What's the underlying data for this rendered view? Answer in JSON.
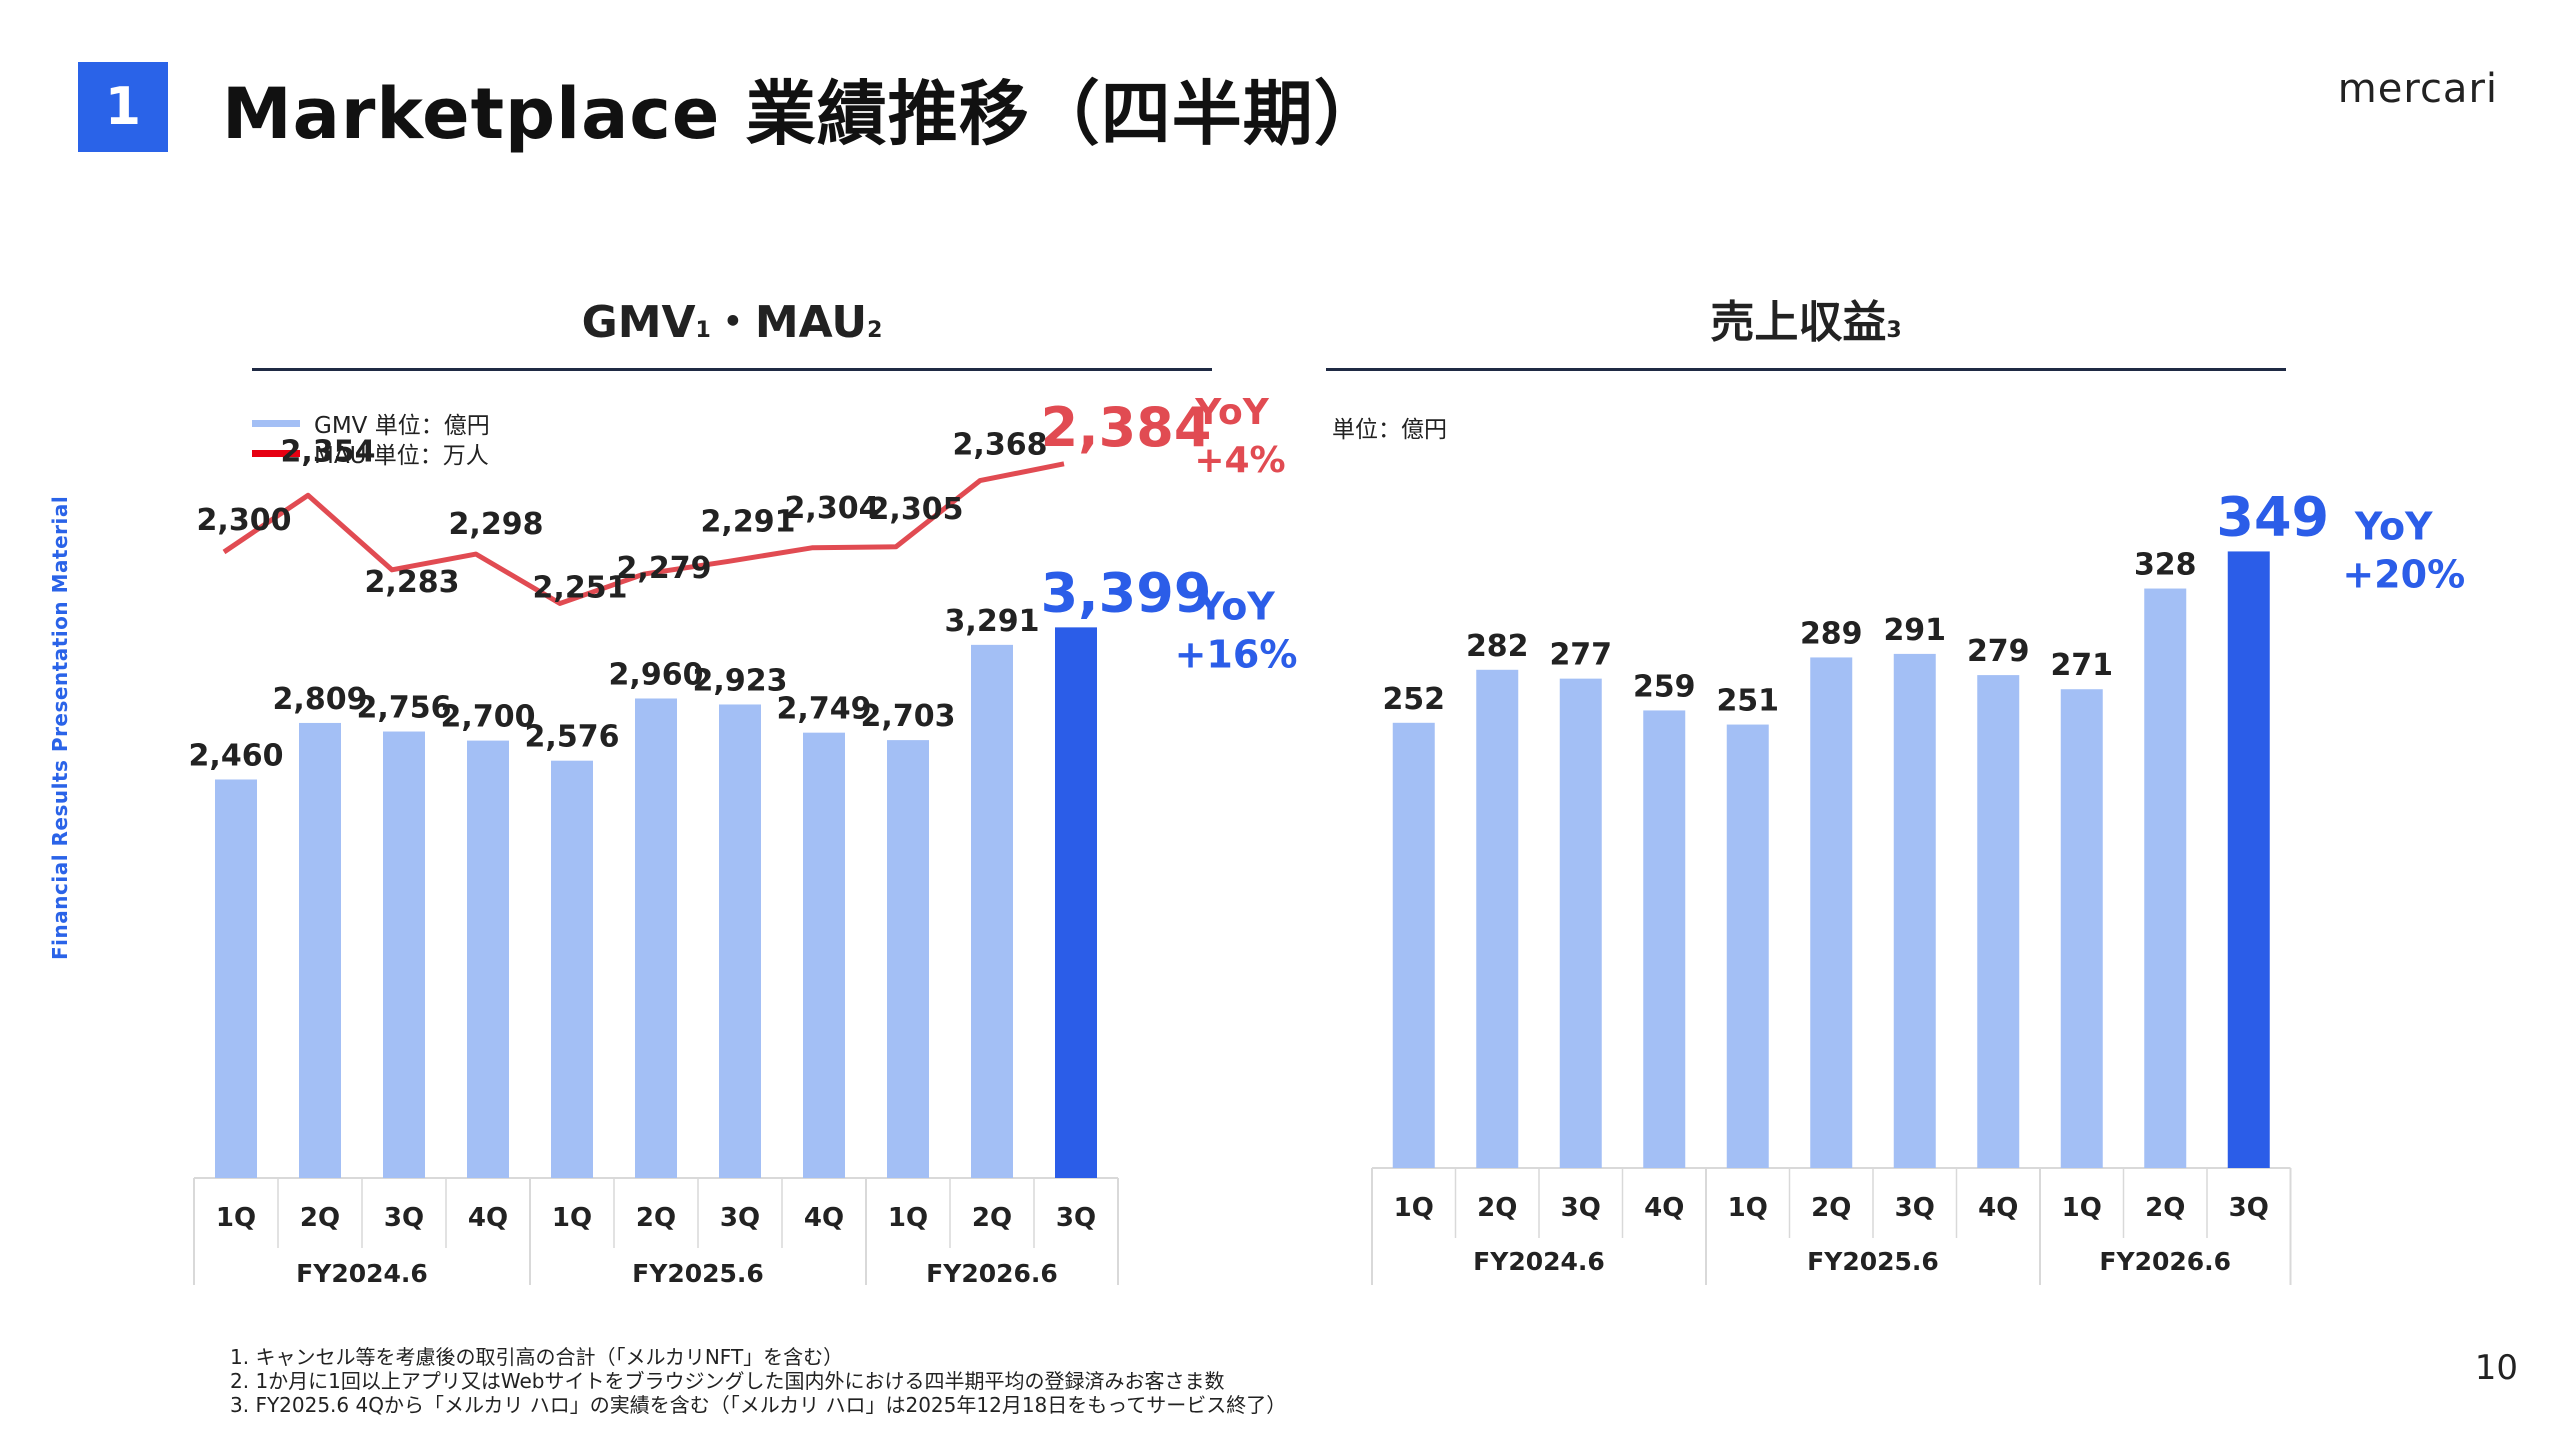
{
  "header": {
    "section_number": "1",
    "title": "Marketplace 業績推移（四半期）",
    "brand": "mercari"
  },
  "side_label": "Financial Results Presentation Material",
  "page_number": "10",
  "footnotes": [
    "1. キャンセル等を考慮後の取引高の合計（「メルカリNFT」を含む）",
    "2. 1か月に1回以上アプリ又はWebサイトをブラウジングした国内外における四半期平均の登録済みお客さま数",
    "3. FY2025.6 4Qから「メルカリ ハロ」の実績を含む（「メルカリ ハロ」は2025年12月18日をもってサービス終了）"
  ],
  "colors": {
    "bar": "#a3bff5",
    "bar_highlight": "#2b5de8",
    "line": "#e14b52",
    "line_legend": "#e60012",
    "highlight_blue": "#2b5de8",
    "highlight_red": "#e14b52",
    "axis": "#d9d9d9",
    "heading_rule": "#1f2a44"
  },
  "chart_data": [
    {
      "type": "bar",
      "title": "GMV・MAU",
      "title_parts": {
        "gmv": "GMV",
        "gmv_note": "1",
        "separator": "・",
        "mau": "MAU",
        "mau_note": "2"
      },
      "legend": [
        {
          "name": "GMV 単位：億円",
          "color": "#a3bff5"
        },
        {
          "name": "MAU 単位：万人",
          "color": "#e60012"
        }
      ],
      "categories": [
        "1Q",
        "2Q",
        "3Q",
        "4Q",
        "1Q",
        "2Q",
        "3Q",
        "4Q",
        "1Q",
        "2Q",
        "3Q"
      ],
      "groups": [
        {
          "label": "FY2024.6",
          "count": 4
        },
        {
          "label": "FY2025.6",
          "count": 4
        },
        {
          "label": "FY2026.6",
          "count": 3
        }
      ],
      "series": [
        {
          "name": "GMV 単位：億円",
          "type": "bar",
          "values": [
            2460,
            2809,
            2756,
            2700,
            2576,
            2960,
            2923,
            2749,
            2703,
            3291,
            3399
          ],
          "labels": [
            "2,460",
            "2,809",
            "2,756",
            "2,700",
            "2,576",
            "2,960",
            "2,923",
            "2,749",
            "2,703",
            "3,291",
            "3,399"
          ],
          "highlight_index": 10
        },
        {
          "name": "MAU 単位：万人",
          "type": "line",
          "values": [
            2300,
            2354,
            2283,
            2298,
            2251,
            2279,
            2291,
            2304,
            2305,
            2368,
            2384
          ],
          "labels": [
            "2,300",
            "2,354",
            "2,283",
            "2,298",
            "2,251",
            "2,279",
            "2,291",
            "2,304",
            "2,305",
            "2,368",
            "2,384"
          ],
          "highlight_index": 10
        }
      ],
      "annotations": [
        {
          "series": "GMV",
          "text_1": "YoY",
          "text_2": "+16%"
        },
        {
          "series": "MAU",
          "text_1": "YoY",
          "text_2": "+4%"
        }
      ],
      "ylim": [
        0,
        3500
      ]
    },
    {
      "type": "bar",
      "title": "売上収益",
      "title_note": "3",
      "unit": "単位：億円",
      "categories": [
        "1Q",
        "2Q",
        "3Q",
        "4Q",
        "1Q",
        "2Q",
        "3Q",
        "4Q",
        "1Q",
        "2Q",
        "3Q"
      ],
      "groups": [
        {
          "label": "FY2024.6",
          "count": 4
        },
        {
          "label": "FY2025.6",
          "count": 4
        },
        {
          "label": "FY2026.6",
          "count": 3
        }
      ],
      "series": [
        {
          "name": "売上収益",
          "values": [
            252,
            282,
            277,
            259,
            251,
            289,
            291,
            279,
            271,
            328,
            349
          ],
          "labels": [
            "252",
            "282",
            "277",
            "259",
            "251",
            "289",
            "291",
            "279",
            "271",
            "328",
            "349"
          ],
          "highlight_index": 10
        }
      ],
      "annotations": [
        {
          "text_1": "YoY",
          "text_2": "+20%"
        }
      ],
      "ylim": [
        0,
        360
      ]
    }
  ]
}
